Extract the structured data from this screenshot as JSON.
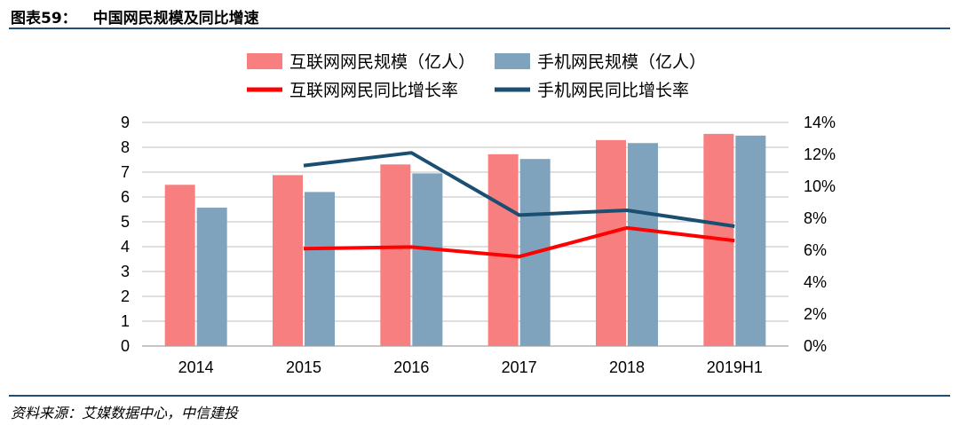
{
  "figure": {
    "label": "图表59：",
    "title": "中国网民规模及同比增速",
    "source": "资料来源：艾媒数据中心，中信建投"
  },
  "colors": {
    "internet_bar": "#f77f7f",
    "mobile_bar": "#7fa3bd",
    "internet_line": "#ff0000",
    "mobile_line": "#1b4f72",
    "grid": "#bfbfbf",
    "rule": "#1f4e79"
  },
  "chart_data": {
    "type": "bar+line",
    "categories": [
      "2014",
      "2015",
      "2016",
      "2017",
      "2018",
      "2019H1"
    ],
    "bar_series": [
      {
        "name": "互联网网民规模（亿人）",
        "axis": "left",
        "values": [
          6.49,
          6.88,
          7.31,
          7.72,
          8.29,
          8.54
        ]
      },
      {
        "name": "手机网民规模（亿人）",
        "axis": "left",
        "values": [
          5.57,
          6.2,
          6.95,
          7.53,
          8.17,
          8.47
        ]
      }
    ],
    "line_series": [
      {
        "name": "互联网网民同比增长率",
        "axis": "right",
        "values": [
          null,
          0.061,
          0.062,
          0.056,
          0.074,
          0.066
        ]
      },
      {
        "name": "手机网民同比增长率",
        "axis": "right",
        "values": [
          null,
          0.113,
          0.121,
          0.082,
          0.085,
          0.075
        ]
      }
    ],
    "left_axis": {
      "min": 0,
      "max": 9,
      "ticks": [
        "0",
        "1",
        "2",
        "3",
        "4",
        "5",
        "6",
        "7",
        "8",
        "9"
      ]
    },
    "right_axis": {
      "min": 0,
      "max": 0.14,
      "ticks": [
        "0%",
        "2%",
        "4%",
        "6%",
        "8%",
        "10%",
        "12%",
        "14%"
      ]
    },
    "grid": true,
    "legend_position": "top"
  }
}
